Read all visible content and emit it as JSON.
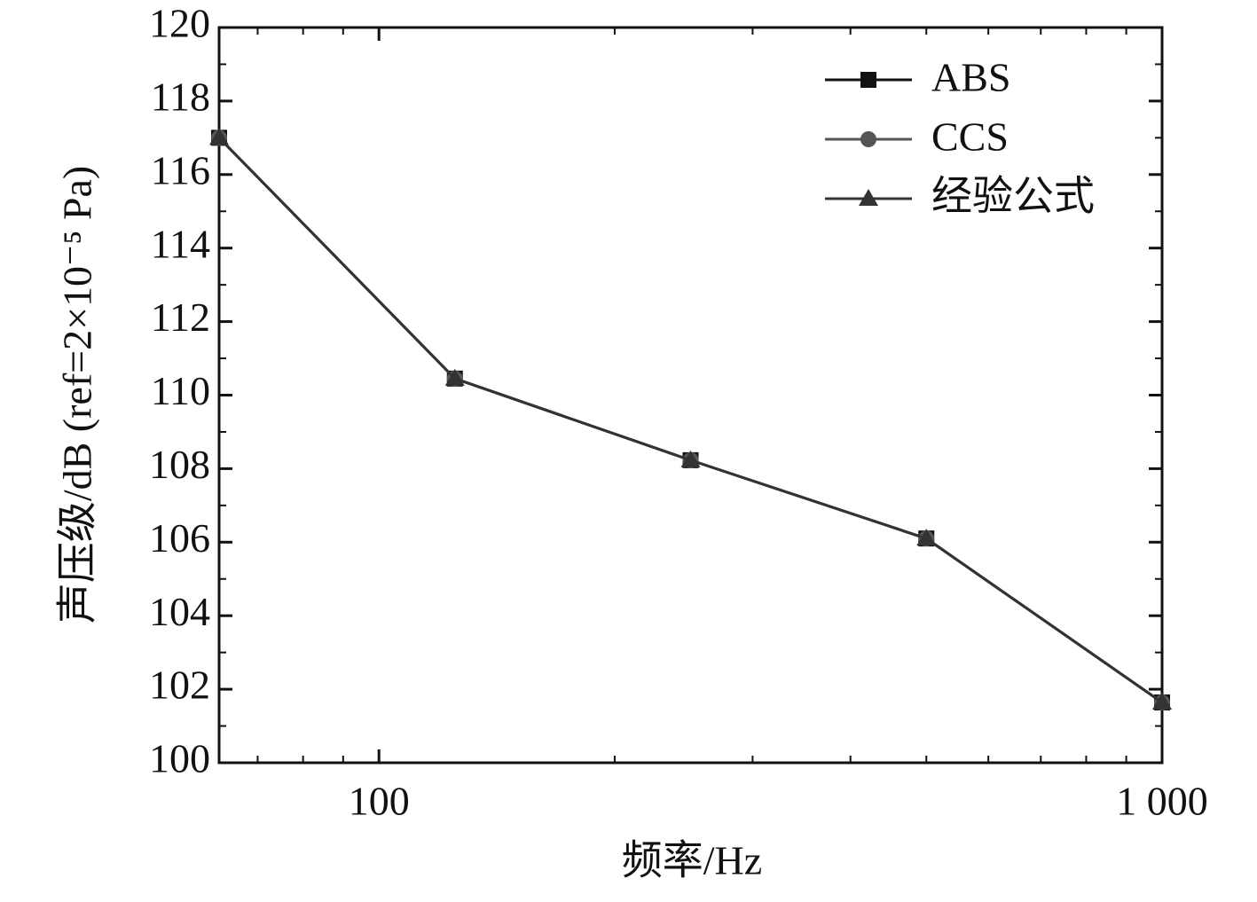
{
  "chart_data": {
    "type": "line",
    "x_label": "频率/Hz",
    "y_label": "声压级/dB (ref=2×10⁻⁵ Pa)",
    "x": [
      62.5,
      125,
      250,
      500,
      1000
    ],
    "series": [
      {
        "name": "ABS",
        "color": "#111111",
        "marker": "square",
        "values": [
          117.0,
          110.45,
          108.23,
          106.1,
          101.64
        ]
      },
      {
        "name": "CCS",
        "color": "#555555",
        "marker": "circle",
        "values": [
          117.0,
          110.45,
          108.23,
          106.1,
          101.64
        ]
      },
      {
        "name": "经验公式",
        "color": "#333333",
        "marker": "triangle",
        "values": [
          117.0,
          110.45,
          108.23,
          106.1,
          101.64
        ]
      }
    ],
    "xlim": [
      62.5,
      1000
    ],
    "xscale": "log",
    "xticks": [
      100,
      {
        "value": 1000,
        "label": "1 000"
      }
    ],
    "ylim": [
      100,
      120
    ],
    "yticks": [
      100,
      102,
      104,
      106,
      108,
      110,
      112,
      114,
      116,
      118,
      120
    ],
    "legend": "upper right"
  }
}
